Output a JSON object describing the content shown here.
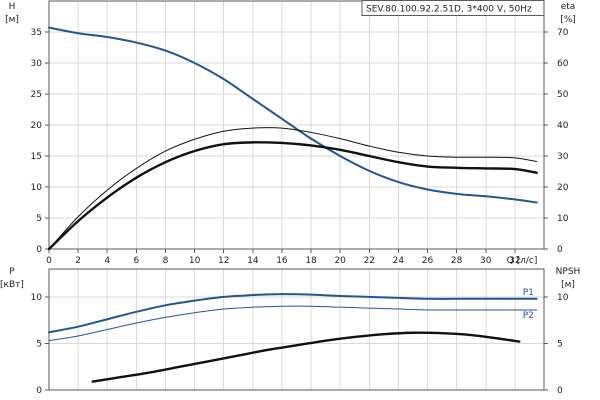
{
  "model_label": "SEV.80.100.92.2.51D, 3*400 V, 50Hz",
  "colors": {
    "blue": "#1f5796",
    "black": "#111111",
    "grid": "#d9d9d9",
    "frame": "#5a5a5a"
  },
  "chart_data": [
    {
      "type": "line",
      "x_axis": {
        "label": "Q [л/с]",
        "range": [
          0,
          34
        ],
        "ticks": [
          0,
          2,
          4,
          6,
          8,
          10,
          12,
          14,
          16,
          18,
          20,
          22,
          24,
          26,
          28,
          30,
          32
        ]
      },
      "y_left": {
        "label_top": "H",
        "label_unit": "[м]",
        "range": [
          0,
          40
        ],
        "ticks": [
          0,
          5,
          10,
          15,
          20,
          25,
          30,
          35
        ]
      },
      "y_right": {
        "label_top": "eta",
        "label_unit": "[%]",
        "range": [
          0,
          80
        ],
        "ticks": [
          0,
          10,
          20,
          30,
          40,
          50,
          60,
          70
        ]
      },
      "grid": true,
      "series": [
        {
          "axis": "left",
          "color": "#1f5796",
          "width": 2,
          "x": [
            0,
            2,
            4,
            6,
            8,
            10,
            12,
            14,
            16,
            18,
            20,
            22,
            24,
            26,
            28,
            30,
            32,
            33.5
          ],
          "y": [
            35.7,
            34.8,
            34.2,
            33.3,
            32.0,
            30.0,
            27.4,
            24.2,
            21.0,
            17.8,
            15.0,
            12.6,
            10.8,
            9.6,
            8.9,
            8.5,
            8.0,
            7.5
          ]
        },
        {
          "axis": "left",
          "color": "#111111",
          "width": 2.4,
          "x": [
            0,
            2,
            4,
            6,
            8,
            10,
            12,
            14,
            16,
            18,
            20,
            22,
            24,
            26,
            28,
            30,
            32,
            33.5
          ],
          "y": [
            0,
            4.5,
            8.3,
            11.5,
            14.0,
            15.8,
            16.9,
            17.2,
            17.1,
            16.7,
            16.0,
            15.0,
            14.0,
            13.3,
            13.1,
            13.0,
            12.9,
            12.3
          ]
        },
        {
          "axis": "left",
          "color": "#111111",
          "width": 1,
          "x": [
            0,
            2,
            4,
            6,
            8,
            10,
            12,
            14,
            16,
            18,
            20,
            22,
            24,
            26,
            28,
            30,
            32,
            33.5
          ],
          "y": [
            0,
            5.2,
            9.5,
            13.0,
            15.8,
            17.7,
            19.0,
            19.5,
            19.5,
            18.8,
            17.8,
            16.6,
            15.6,
            15.0,
            14.8,
            14.8,
            14.7,
            14.1
          ]
        }
      ]
    },
    {
      "type": "line",
      "x_axis": {
        "range": [
          0,
          34
        ],
        "ticks": []
      },
      "y_left": {
        "label_top": "P",
        "label_unit": "[кВт]",
        "range": [
          0,
          13
        ],
        "ticks": [
          0,
          5,
          10
        ]
      },
      "y_right": {
        "label_top": "NPSH",
        "label_unit": "[м]",
        "range": [
          0,
          13
        ],
        "ticks": [
          0,
          5,
          10
        ]
      },
      "grid": true,
      "series": [
        {
          "name": "P1",
          "axis": "left",
          "color": "#1f5796",
          "width": 2,
          "x": [
            0,
            2,
            4,
            6,
            8,
            10,
            12,
            14,
            16,
            18,
            20,
            22,
            24,
            26,
            28,
            30,
            32,
            33.5
          ],
          "y": [
            6.2,
            6.8,
            7.6,
            8.4,
            9.1,
            9.6,
            10.0,
            10.2,
            10.3,
            10.25,
            10.1,
            10.0,
            9.9,
            9.8,
            9.8,
            9.8,
            9.8,
            9.8
          ]
        },
        {
          "name": "P2",
          "axis": "left",
          "color": "#1f5796",
          "width": 1,
          "x": [
            0,
            2,
            4,
            6,
            8,
            10,
            12,
            14,
            16,
            18,
            20,
            22,
            24,
            26,
            28,
            30,
            32,
            33.5
          ],
          "y": [
            5.3,
            5.8,
            6.5,
            7.2,
            7.8,
            8.3,
            8.7,
            8.9,
            9.0,
            9.0,
            8.9,
            8.8,
            8.7,
            8.6,
            8.6,
            8.6,
            8.6,
            8.6
          ]
        },
        {
          "axis": "right",
          "color": "#111111",
          "width": 2.4,
          "x": [
            3,
            5,
            7,
            9,
            11,
            13,
            15,
            17,
            19,
            21,
            23,
            25,
            27,
            29,
            31,
            32.3
          ],
          "y": [
            0.9,
            1.4,
            1.9,
            2.5,
            3.1,
            3.7,
            4.3,
            4.8,
            5.3,
            5.7,
            6.0,
            6.15,
            6.1,
            5.9,
            5.5,
            5.2
          ]
        }
      ]
    }
  ]
}
